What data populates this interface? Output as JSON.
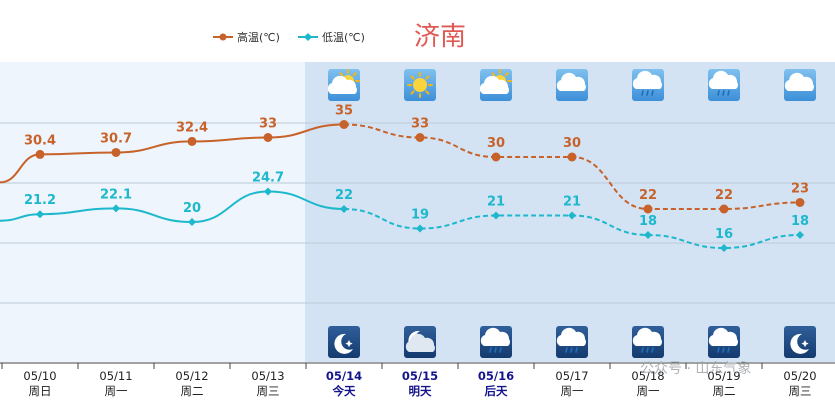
{
  "city": "济南",
  "legend": {
    "high": "高温(℃)",
    "low": "低温(℃)"
  },
  "colors": {
    "high": "#c7622a",
    "low": "#1db8cc",
    "forecast_bg": "#d3e3f4",
    "past_bg": "#eef5fc",
    "city": "#e05a55",
    "highlight_date": "#14148c"
  },
  "watermark": "公众号 · 山东气象",
  "chart_data": {
    "type": "line",
    "categories": [
      "05/10",
      "05/11",
      "05/12",
      "05/13",
      "05/14",
      "05/15",
      "05/16",
      "05/17",
      "05/18",
      "05/19",
      "05/20"
    ],
    "weekdays": [
      "周日",
      "周一",
      "周二",
      "周三",
      "今天",
      "明天",
      "后天",
      "周一",
      "周一",
      "周二",
      "周三"
    ],
    "highlight_indices": [
      4,
      5,
      6
    ],
    "forecast_start_index": 4,
    "series": [
      {
        "name": "高温(℃)",
        "values": [
          30.4,
          30.7,
          32.4,
          33,
          35,
          33,
          30,
          30,
          22,
          22,
          23
        ]
      },
      {
        "name": "低温(℃)",
        "values": [
          21.2,
          22.1,
          20,
          24.7,
          22,
          19,
          21,
          21,
          18,
          16,
          18
        ]
      }
    ],
    "day_icons": [
      "cloudy-sun-icon",
      "sunny-icon",
      "cloudy-sun-icon",
      "cloudy-icon",
      "light-rain-icon",
      "light-rain-icon",
      "cloudy-icon"
    ],
    "night_icons": [
      "clear-night-icon",
      "cloudy-night-icon",
      "light-rain-icon",
      "light-rain-icon",
      "light-rain-icon",
      "light-rain-icon",
      "clear-night-icon"
    ],
    "xlabel": "",
    "ylabel": ""
  }
}
